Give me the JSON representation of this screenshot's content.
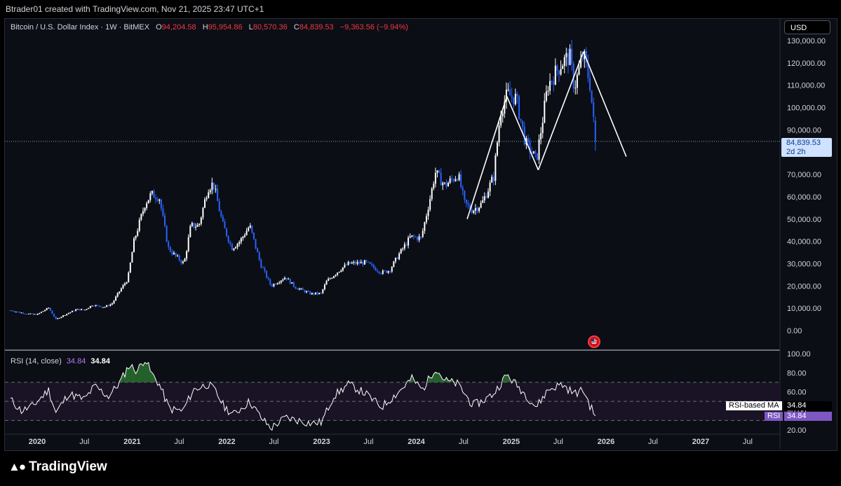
{
  "header": {
    "text": "Btrader01 created with TradingView.com, Nov 21, 2025 23:47 UTC+1"
  },
  "legend": {
    "symbol": "Bitcoin / U.S. Dollar Index · 1W · BitMEX",
    "o_label": "O",
    "o": "94,204.58",
    "h_label": "H",
    "h": "95,954.86",
    "l_label": "L",
    "l": "80,570.36",
    "c_label": "C",
    "c": "84,839.53",
    "change": "−9,363.56 (−9.94%)"
  },
  "currency_button": "USD",
  "price_tag": {
    "price": "84,839.53",
    "countdown": "2d 2h"
  },
  "rsi": {
    "label": "RSI (14, close)",
    "value_purple": "34.84",
    "value_white": "34.84",
    "ma_tag_label": "RSI-based MA",
    "ma_tag_value": "34.84",
    "rsi_tag_label": "RSI",
    "rsi_tag_value": "34.84"
  },
  "brand": {
    "name": "TradingView",
    "logo_icon": "tradingview-logo-icon"
  },
  "colors": {
    "candle_up": "#ffffff",
    "candle_down": "#2962ff",
    "rsi_line": "#ffffff",
    "rsi_overbought_fill": "#2e7d32",
    "rsi_band": "#1a1326",
    "negative": "#f23645",
    "rsi_purple": "#b07cf4"
  },
  "chart_data": [
    {
      "type": "candlestick",
      "title": "Bitcoin / U.S. Dollar Index · 1W · BitMEX",
      "ylim": [
        0,
        130000
      ],
      "y_ticks": [
        0,
        10000,
        20000,
        30000,
        40000,
        50000,
        60000,
        70000,
        80000,
        90000,
        100000,
        110000,
        120000,
        130000
      ],
      "y_tick_labels": [
        "0.00",
        "10,000.00",
        "20,000.00",
        "30,000.00",
        "40,000.00",
        "50,000.00",
        "60,000.00",
        "70,000.00",
        "80,000.00",
        "90,000.00",
        "100,000.00",
        "110,000.00",
        "120,000.00",
        "130,000.00"
      ],
      "x_tick_labels": [
        "2020",
        "Jul",
        "2021",
        "Jul",
        "2022",
        "Jul",
        "2023",
        "Jul",
        "2024",
        "Jul",
        "2025",
        "Jul",
        "2026",
        "Jul",
        "2027",
        "Jul"
      ],
      "x_tick_dates": [
        "2020-01-01",
        "2020-07-01",
        "2021-01-01",
        "2021-07-01",
        "2022-01-01",
        "2022-07-01",
        "2023-01-01",
        "2023-07-01",
        "2024-01-01",
        "2024-07-01",
        "2025-01-01",
        "2025-07-01",
        "2026-01-01",
        "2026-07-01",
        "2027-01-01",
        "2027-07-01"
      ],
      "close_path": [
        [
          "2019-09-20",
          9000
        ],
        [
          "2019-11-22",
          7500
        ],
        [
          "2020-01-01",
          7200
        ],
        [
          "2020-02-14",
          10200
        ],
        [
          "2020-03-13",
          5000
        ],
        [
          "2020-04-15",
          7000
        ],
        [
          "2020-06-01",
          9500
        ],
        [
          "2020-07-01",
          9200
        ],
        [
          "2020-08-01",
          11500
        ],
        [
          "2020-09-15",
          10500
        ],
        [
          "2020-10-15",
          12000
        ],
        [
          "2020-11-15",
          18000
        ],
        [
          "2020-12-15",
          23000
        ],
        [
          "2021-01-08",
          40000
        ],
        [
          "2021-02-20",
          57000
        ],
        [
          "2021-03-15",
          61000
        ],
        [
          "2021-04-15",
          60000
        ],
        [
          "2021-05-20",
          37000
        ],
        [
          "2021-06-20",
          33000
        ],
        [
          "2021-07-20",
          30000
        ],
        [
          "2021-08-15",
          47000
        ],
        [
          "2021-09-15",
          47000
        ],
        [
          "2021-10-20",
          64000
        ],
        [
          "2021-11-10",
          66000
        ],
        [
          "2021-12-15",
          48000
        ],
        [
          "2022-01-20",
          37000
        ],
        [
          "2022-02-20",
          40000
        ],
        [
          "2022-03-30",
          47000
        ],
        [
          "2022-05-10",
          30000
        ],
        [
          "2022-06-20",
          20000
        ],
        [
          "2022-08-15",
          24000
        ],
        [
          "2022-09-20",
          19500
        ],
        [
          "2022-11-20",
          16500
        ],
        [
          "2022-12-30",
          16600
        ],
        [
          "2023-01-20",
          22000
        ],
        [
          "2023-03-20",
          28000
        ],
        [
          "2023-04-15",
          30000
        ],
        [
          "2023-06-20",
          30500
        ],
        [
          "2023-08-20",
          26000
        ],
        [
          "2023-09-20",
          27000
        ],
        [
          "2023-10-25",
          34000
        ],
        [
          "2023-12-10",
          42000
        ],
        [
          "2024-01-20",
          41500
        ],
        [
          "2024-02-28",
          62000
        ],
        [
          "2024-03-14",
          71000
        ],
        [
          "2024-04-20",
          65000
        ],
        [
          "2024-06-10",
          70000
        ],
        [
          "2024-07-05",
          57000
        ],
        [
          "2024-08-05",
          54000
        ],
        [
          "2024-09-10",
          57000
        ],
        [
          "2024-10-25",
          69000
        ],
        [
          "2024-11-20",
          98000
        ],
        [
          "2024-12-17",
          106000
        ],
        [
          "2025-01-20",
          104000
        ],
        [
          "2025-02-25",
          84000
        ],
        [
          "2025-04-08",
          76500
        ],
        [
          "2025-05-22",
          110000
        ],
        [
          "2025-07-14",
          120000
        ],
        [
          "2025-08-14",
          123000
        ],
        [
          "2025-09-01",
          109000
        ],
        [
          "2025-10-06",
          124000
        ],
        [
          "2025-11-01",
          110000
        ],
        [
          "2025-11-21",
          84839.53
        ]
      ],
      "last": {
        "open": 94204.58,
        "high": 95954.86,
        "low": 80570.36,
        "close": 84839.53,
        "change": -9363.56,
        "change_pct": -9.94
      },
      "annotation_lines": [
        {
          "from": [
            "2024-07-15",
            50000
          ],
          "to": [
            "2024-12-15",
            105000
          ]
        },
        {
          "from": [
            "2024-12-15",
            105000
          ],
          "to": [
            "2025-04-15",
            72000
          ]
        },
        {
          "from": [
            "2025-04-15",
            72000
          ],
          "to": [
            "2025-10-06",
            125000
          ]
        },
        {
          "from": [
            "2025-10-06",
            125000
          ],
          "to": [
            "2026-03-20",
            78000
          ]
        }
      ]
    },
    {
      "type": "line",
      "title": "RSI (14, close)",
      "ylim": [
        15,
        100
      ],
      "y_ticks": [
        20,
        40,
        60,
        80,
        100
      ],
      "y_tick_labels": [
        "20.00",
        "40.00",
        "60.00",
        "80.00",
        "100.00"
      ],
      "bands": [
        30,
        50,
        70
      ],
      "overbought": 70,
      "points": [
        [
          "2019-09-20",
          52
        ],
        [
          "2019-11-01",
          40
        ],
        [
          "2019-12-15",
          45
        ],
        [
          "2020-02-14",
          62
        ],
        [
          "2020-03-13",
          38
        ],
        [
          "2020-05-01",
          58
        ],
        [
          "2020-07-01",
          52
        ],
        [
          "2020-08-10",
          66
        ],
        [
          "2020-10-01",
          55
        ],
        [
          "2020-11-15",
          70
        ],
        [
          "2020-12-20",
          88
        ],
        [
          "2021-01-20",
          82
        ],
        [
          "2021-02-20",
          95
        ],
        [
          "2021-03-15",
          80
        ],
        [
          "2021-04-15",
          68
        ],
        [
          "2021-05-25",
          42
        ],
        [
          "2021-07-15",
          40
        ],
        [
          "2021-08-25",
          62
        ],
        [
          "2021-10-20",
          68
        ],
        [
          "2021-11-15",
          62
        ],
        [
          "2021-12-20",
          45
        ],
        [
          "2022-01-25",
          36
        ],
        [
          "2022-03-30",
          50
        ],
        [
          "2022-05-15",
          32
        ],
        [
          "2022-06-20",
          22
        ],
        [
          "2022-08-15",
          33
        ],
        [
          "2022-11-20",
          27
        ],
        [
          "2023-01-01",
          28
        ],
        [
          "2023-02-15",
          55
        ],
        [
          "2023-04-15",
          68
        ],
        [
          "2023-06-20",
          58
        ],
        [
          "2023-08-20",
          44
        ],
        [
          "2023-10-25",
          60
        ],
        [
          "2023-12-15",
          74
        ],
        [
          "2024-01-25",
          62
        ],
        [
          "2024-03-14",
          85
        ],
        [
          "2024-04-20",
          72
        ],
        [
          "2024-06-10",
          68
        ],
        [
          "2024-08-05",
          46
        ],
        [
          "2024-09-10",
          50
        ],
        [
          "2024-10-25",
          58
        ],
        [
          "2024-12-15",
          78
        ],
        [
          "2025-02-15",
          60
        ],
        [
          "2025-04-08",
          44
        ],
        [
          "2025-05-22",
          62
        ],
        [
          "2025-07-14",
          68
        ],
        [
          "2025-09-01",
          58
        ],
        [
          "2025-10-06",
          62
        ],
        [
          "2025-11-01",
          45
        ],
        [
          "2025-11-21",
          34.84
        ]
      ]
    }
  ]
}
